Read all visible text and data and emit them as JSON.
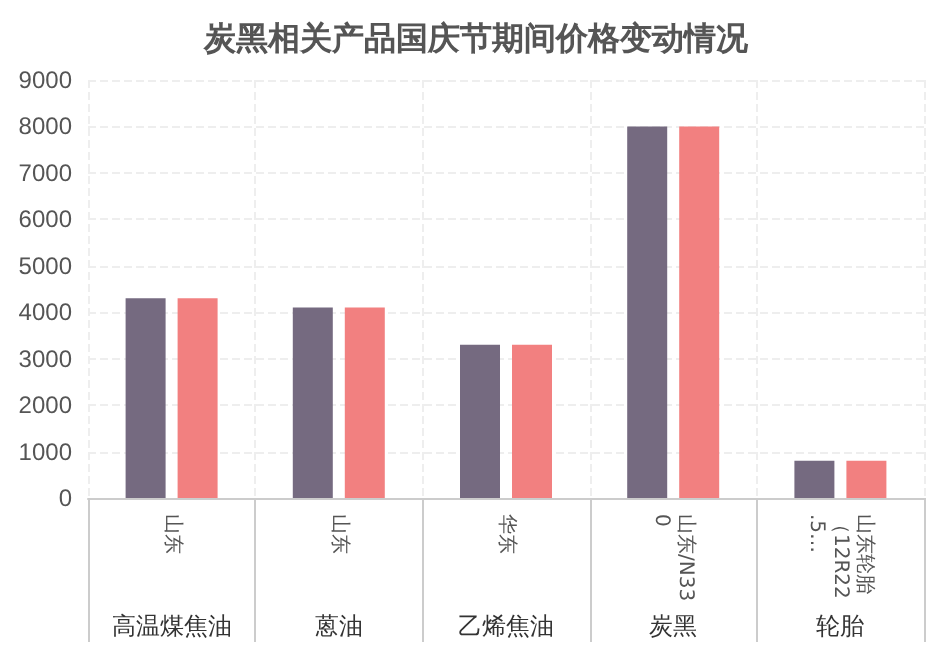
{
  "chart_data": {
    "type": "bar",
    "title": "炭黑相关产品国庆节期间价格变动情况",
    "categories": [
      "山东",
      "山东",
      "华东",
      "山东/N330",
      "山东轮胎（12R22.5…"
    ],
    "annotations": [
      "高温煤焦油",
      "蒽油",
      "乙烯焦油",
      "炭黑",
      "轮胎"
    ],
    "series": [
      {
        "color": "#756a80",
        "values": [
          4300,
          4100,
          3300,
          8000,
          800
        ]
      },
      {
        "color": "#f28080",
        "values": [
          4300,
          4100,
          3300,
          8000,
          800
        ]
      }
    ],
    "ylim": [
      0,
      9000
    ],
    "yticks": [
      0,
      1000,
      2000,
      3000,
      4000,
      5000,
      6000,
      7000,
      8000,
      9000
    ],
    "grid": true
  }
}
